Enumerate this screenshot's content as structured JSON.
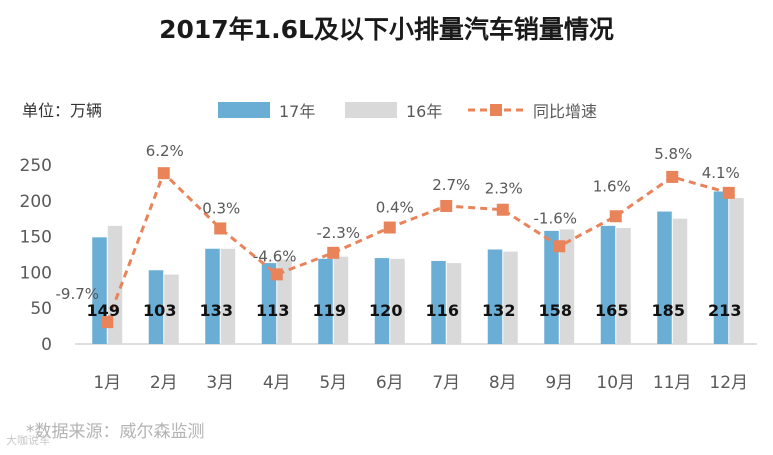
{
  "chart_data": {
    "type": "bar",
    "title": "2017年1.6L及以下小排量汽车销量情况",
    "unit_label": "单位：万辆",
    "source": "*数据来源：威尔森监测",
    "watermark": "大咖说车",
    "categories": [
      "1月",
      "2月",
      "3月",
      "4月",
      "5月",
      "6月",
      "7月",
      "8月",
      "9月",
      "10月",
      "11月",
      "12月"
    ],
    "series": [
      {
        "name": "17年",
        "kind": "bar",
        "color": "#6aaed6",
        "values": [
          149,
          103,
          133,
          113,
          119,
          120,
          116,
          132,
          158,
          165,
          185,
          213
        ]
      },
      {
        "name": "16年",
        "kind": "bar",
        "color": "#d9d9d9",
        "values": [
          165,
          97,
          133,
          118,
          122,
          119,
          113,
          129,
          160,
          162,
          175,
          204
        ]
      },
      {
        "name": "同比增速",
        "kind": "line",
        "color": "#e8835a",
        "values": [
          -9.7,
          6.2,
          0.3,
          -4.6,
          -2.3,
          0.4,
          2.7,
          2.3,
          -1.6,
          1.6,
          5.8,
          4.1
        ],
        "labels": [
          "-9.7%",
          "6.2%",
          "0.3%",
          "-4.6%",
          "-2.3%",
          "0.4%",
          "2.7%",
          "2.3%",
          "-1.6%",
          "1.6%",
          "5.8%",
          "4.1%"
        ]
      }
    ],
    "y_ticks": [
      0,
      50,
      100,
      150,
      200,
      250
    ],
    "ylim": [
      0,
      250
    ],
    "growth_axis_range": [
      -11.5,
      7.5
    ],
    "legend_position": "top-center",
    "grid": false
  }
}
